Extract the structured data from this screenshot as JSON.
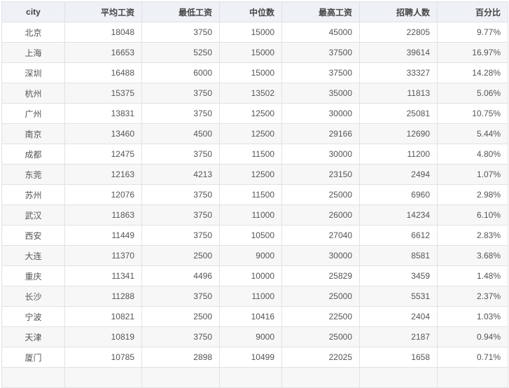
{
  "table": {
    "headers": [
      "city",
      "平均工资",
      "最低工资",
      "中位数",
      "最高工资",
      "招聘人数",
      "百分比"
    ],
    "rows": [
      [
        "北京",
        "18048",
        "3750",
        "15000",
        "45000",
        "22805",
        "9.77%"
      ],
      [
        "上海",
        "16653",
        "5250",
        "15000",
        "37500",
        "39614",
        "16.97%"
      ],
      [
        "深圳",
        "16488",
        "6000",
        "15000",
        "37500",
        "33327",
        "14.28%"
      ],
      [
        "杭州",
        "15375",
        "3750",
        "13502",
        "35000",
        "11813",
        "5.06%"
      ],
      [
        "广州",
        "13831",
        "3750",
        "12500",
        "30000",
        "25081",
        "10.75%"
      ],
      [
        "南京",
        "13460",
        "4500",
        "12500",
        "29166",
        "12690",
        "5.44%"
      ],
      [
        "成都",
        "12475",
        "3750",
        "11500",
        "30000",
        "11200",
        "4.80%"
      ],
      [
        "东莞",
        "12163",
        "4213",
        "12500",
        "23150",
        "2494",
        "1.07%"
      ],
      [
        "苏州",
        "12076",
        "3750",
        "11500",
        "25000",
        "6960",
        "2.98%"
      ],
      [
        "武汉",
        "11863",
        "3750",
        "11000",
        "26000",
        "14234",
        "6.10%"
      ],
      [
        "西安",
        "11449",
        "3750",
        "10500",
        "27040",
        "6612",
        "2.83%"
      ],
      [
        "大连",
        "11370",
        "2500",
        "9000",
        "30000",
        "8581",
        "3.68%"
      ],
      [
        "重庆",
        "11341",
        "4496",
        "10000",
        "25829",
        "3459",
        "1.48%"
      ],
      [
        "长沙",
        "11288",
        "3750",
        "11000",
        "25000",
        "5531",
        "2.37%"
      ],
      [
        "宁波",
        "10821",
        "2500",
        "10416",
        "22500",
        "2404",
        "1.03%"
      ],
      [
        "天津",
        "10819",
        "3750",
        "9000",
        "25000",
        "2187",
        "0.94%"
      ],
      [
        "厦门",
        "10785",
        "2898",
        "10499",
        "22025",
        "1658",
        "0.71%"
      ]
    ]
  }
}
